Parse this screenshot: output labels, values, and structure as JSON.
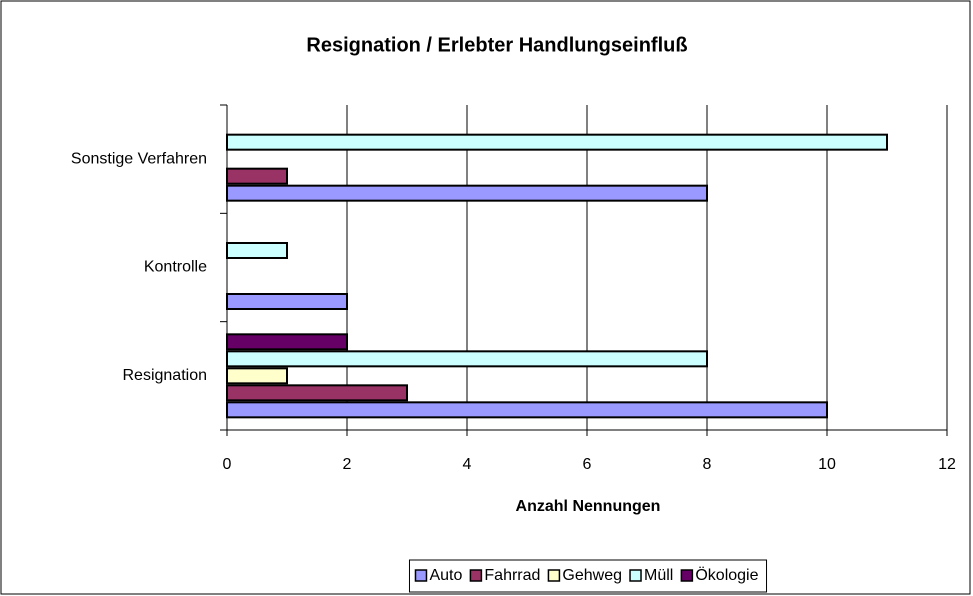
{
  "chart_data": {
    "type": "barh",
    "title": "Resignation / Erlebter Handlungseinfluß",
    "xlabel": "Anzahl Nennungen",
    "categories": [
      "Resignation",
      "Kontrolle",
      "Sonstige Verfahren"
    ],
    "series": [
      {
        "name": "Auto",
        "color": "#9999ff",
        "values": [
          10,
          2,
          8
        ]
      },
      {
        "name": "Fahrrad",
        "color": "#993366",
        "values": [
          3,
          null,
          1
        ]
      },
      {
        "name": "Gehweg",
        "color": "#ffffcc",
        "values": [
          1,
          null,
          null
        ]
      },
      {
        "name": "Müll",
        "color": "#ccffff",
        "values": [
          8,
          1,
          11
        ]
      },
      {
        "name": "Ökologie",
        "color": "#660066",
        "values": [
          2,
          null,
          null
        ]
      }
    ],
    "xlim": [
      0,
      12
    ],
    "xticks": [
      0,
      2,
      4,
      6,
      8,
      10,
      12
    ],
    "grid": true,
    "legend": "bottom"
  }
}
